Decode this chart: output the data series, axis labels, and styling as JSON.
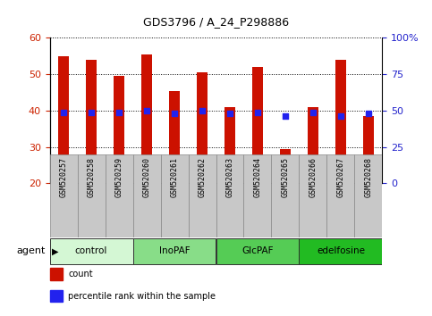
{
  "title": "GDS3796 / A_24_P298886",
  "samples": [
    "GSM520257",
    "GSM520258",
    "GSM520259",
    "GSM520260",
    "GSM520261",
    "GSM520262",
    "GSM520263",
    "GSM520264",
    "GSM520265",
    "GSM520266",
    "GSM520267",
    "GSM520268"
  ],
  "count_values": [
    55.0,
    54.0,
    49.5,
    55.5,
    45.5,
    50.5,
    41.0,
    52.0,
    29.5,
    41.0,
    54.0,
    38.5
  ],
  "percentile_right": [
    49,
    49,
    49,
    50,
    48,
    50,
    48,
    49,
    46,
    49,
    46,
    48
  ],
  "ylim_left": [
    20,
    60
  ],
  "ylim_right": [
    0,
    100
  ],
  "yticks_left": [
    20,
    30,
    40,
    50,
    60
  ],
  "yticks_right": [
    0,
    25,
    50,
    75,
    100
  ],
  "ytick_labels_right": [
    "0",
    "25",
    "50",
    "75",
    "100%"
  ],
  "groups": [
    {
      "label": "control",
      "start": 0,
      "end": 3,
      "color": "#d4f7d4"
    },
    {
      "label": "InoPAF",
      "start": 3,
      "end": 6,
      "color": "#88dd88"
    },
    {
      "label": "GlcPAF",
      "start": 6,
      "end": 9,
      "color": "#55cc55"
    },
    {
      "label": "edelfosine",
      "start": 9,
      "end": 12,
      "color": "#22bb22"
    }
  ],
  "bar_color": "#cc1100",
  "dot_color": "#2222ee",
  "bar_width": 0.38,
  "tick_color_left": "#cc2200",
  "tick_color_right": "#2222cc",
  "sample_box_color": "#c8c8c8",
  "ybase": 20,
  "legend": [
    {
      "label": "count",
      "color": "#cc1100"
    },
    {
      "label": "percentile rank within the sample",
      "color": "#2222ee"
    }
  ],
  "agent_label": "agent"
}
